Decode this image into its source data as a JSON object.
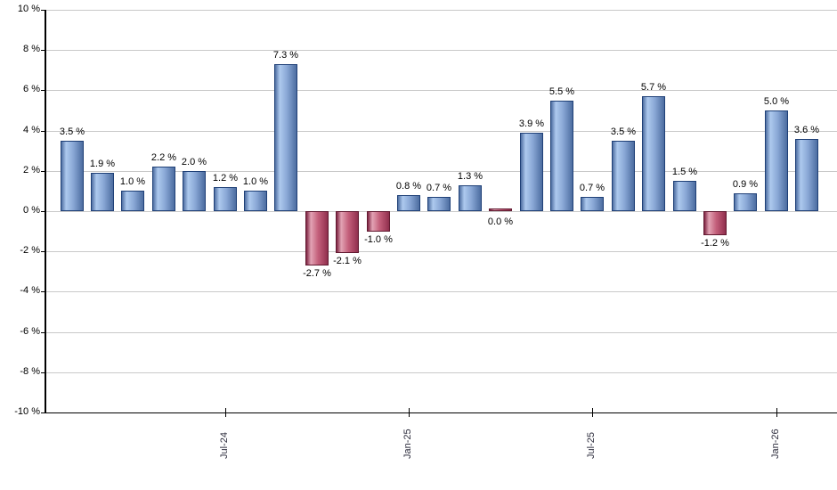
{
  "chart_data": {
    "type": "bar",
    "title": "",
    "xlabel": "",
    "ylabel": "",
    "ylim": [
      -10,
      10
    ],
    "y_tick_step": 2,
    "grid": true,
    "legend": false,
    "y_tick_labels": [
      "10 %",
      "8 %",
      "6 %",
      "4 %",
      "2 %",
      "0 %",
      "-2 %",
      "-4 %",
      "-6 %",
      "-8 %",
      "-10 %"
    ],
    "values": [
      3.5,
      1.9,
      1.0,
      2.2,
      2.0,
      1.2,
      1.0,
      7.3,
      -2.7,
      -2.1,
      -1.0,
      0.8,
      0.7,
      1.3,
      0.0,
      3.9,
      5.5,
      0.7,
      3.5,
      5.7,
      1.5,
      -1.2,
      0.9,
      5.0,
      3.6
    ],
    "data_labels": [
      "3.5 %",
      "1.9 %",
      "1.0 %",
      "2.2 %",
      "2.0 %",
      "1.2 %",
      "1.0 %",
      "7.3 %",
      "-2.7 %",
      "-2.1 %",
      "-1.0 %",
      "0.8 %",
      "0.7 %",
      "1.3 %",
      "0.0 %",
      "3.9 %",
      "5.5 %",
      "0.7 %",
      "3.5 %",
      "5.7 %",
      "1.5 %",
      "-1.2 %",
      "0.9 %",
      "5.0 %",
      "3.6 %"
    ],
    "x_ticks": [
      {
        "label": "Jul-24",
        "bar_index": 5
      },
      {
        "label": "Jan-25",
        "bar_index": 11
      },
      {
        "label": "Jul-25",
        "bar_index": 17
      },
      {
        "label": "Jan-26",
        "bar_index": 23
      }
    ],
    "colors": {
      "positive_bar_light": "#adc9ee",
      "positive_bar_dark": "#4f6fa2",
      "positive_bar_border": "#1f4077",
      "negative_bar_light": "#e2a3b4",
      "negative_bar_dark": "#7e2342",
      "negative_bar_border": "#611930",
      "gridline": "#c9c9c9",
      "axis": "#000000",
      "value_label_text": "#000000",
      "x_tick_label_text": "#2e2e3e"
    }
  }
}
